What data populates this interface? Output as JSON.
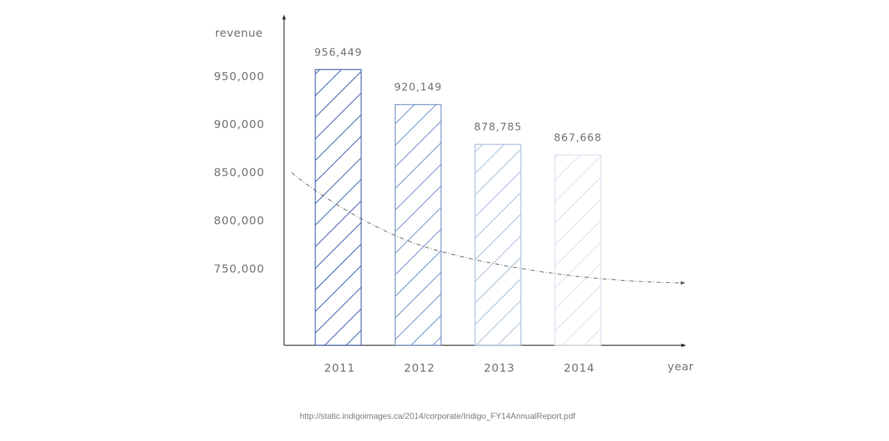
{
  "chart_data": {
    "type": "bar",
    "xlabel": "year",
    "ylabel": "revenue",
    "categories": [
      "2011",
      "2012",
      "2013",
      "2014"
    ],
    "values": [
      956449,
      920149,
      878785,
      867668
    ],
    "value_labels": [
      "956,449",
      "920,149",
      "878,785",
      "867,668"
    ],
    "yticks": [
      750000,
      800000,
      850000,
      900000,
      950000
    ],
    "ytick_labels": [
      "750,000",
      "800,000",
      "850,000",
      "900,000",
      "950,000"
    ],
    "ylim": [
      670000,
      1010000
    ],
    "grid": false,
    "legend": "none",
    "trend_line": "dashed, decreasing",
    "bar_colors": [
      "#3f63ae",
      "#7092c7",
      "#a7bddf",
      "#d9e0ee"
    ],
    "bar_fill": "diagonal hatch"
  },
  "source": "http://static.indigoimages.ca/2014/corporate/Indigo_FY14AnnualReport.pdf"
}
